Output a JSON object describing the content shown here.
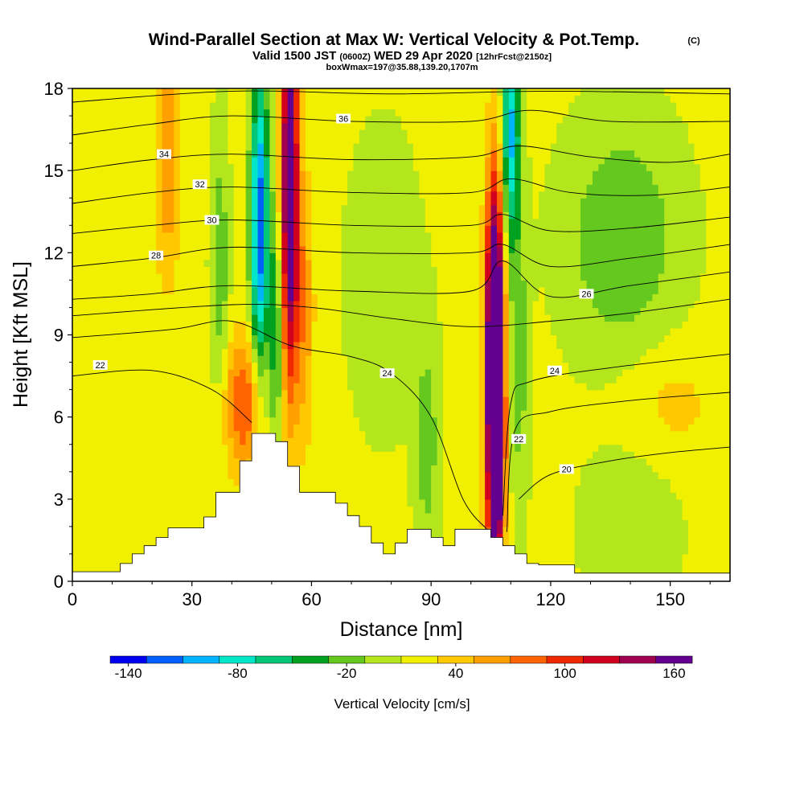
{
  "chart_data": {
    "type": "heatmap",
    "title": "Wind-Parallel Section at Max W: Vertical Velocity & Pot.Temp.",
    "title_mark": "(C)",
    "subtitle": {
      "valid_label": "Valid",
      "time": "1500 JST",
      "utc": "(0600Z)",
      "date": "WED 29 Apr 2020",
      "forecast": "[12hrFcst@2150z]"
    },
    "box_note": "boxWmax=197@35.88,139.20,1707m",
    "xlabel": "Distance [nm]",
    "ylabel": "Height [Kft MSL]",
    "xlim": [
      0,
      165
    ],
    "ylim": [
      0,
      18
    ],
    "x_ticks": [
      "0",
      "30",
      "60",
      "90",
      "120",
      "150"
    ],
    "y_ticks": [
      "0",
      "3",
      "6",
      "9",
      "12",
      "15",
      "18"
    ],
    "colorbar": {
      "label": "Vertical Velocity [cm/s]",
      "tick_labels": [
        "-140",
        "-80",
        "-20",
        "40",
        "100",
        "160"
      ],
      "levels": [
        -150,
        -130,
        -110,
        -90,
        -70,
        -50,
        -30,
        -10,
        10,
        30,
        50,
        70,
        90,
        110,
        130,
        150,
        170
      ],
      "colors": [
        "#0000f0",
        "#0060ff",
        "#00b4ff",
        "#00e6c8",
        "#00c878",
        "#00a020",
        "#64c81e",
        "#b4e61e",
        "#f0f000",
        "#ffc800",
        "#ffa000",
        "#ff6400",
        "#f02800",
        "#d2001e",
        "#a00050",
        "#640090"
      ]
    },
    "background_w": 15,
    "w_features": [
      {
        "x": 24,
        "y": 15.5,
        "sx": 2.2,
        "sy": 3.0,
        "w": 55
      },
      {
        "x": 37,
        "y": 11.5,
        "sx": 1.6,
        "sy": 3.5,
        "w": -40
      },
      {
        "x": 43,
        "y": 6.5,
        "sx": 3.5,
        "sy": 1.8,
        "w": 75
      },
      {
        "x": 47,
        "y": 13.0,
        "sx": 1.6,
        "sy": 4.0,
        "w": -140
      },
      {
        "x": 51,
        "y": 9.0,
        "sx": 1.2,
        "sy": 3.0,
        "w": -60
      },
      {
        "x": 54.5,
        "y": 14.5,
        "sx": 1.5,
        "sy": 5.0,
        "w": 180
      },
      {
        "x": 58,
        "y": 10.0,
        "sx": 1.8,
        "sy": 3.5,
        "w": 50
      },
      {
        "x": 89,
        "y": 5.0,
        "sx": 2.2,
        "sy": 3.0,
        "w": -35
      },
      {
        "x": 106,
        "y": 8.0,
        "sx": 1.6,
        "sy": 4.5,
        "w": 260
      },
      {
        "x": 106.5,
        "y": 3.5,
        "sx": 1.3,
        "sy": 2.0,
        "w": 80
      },
      {
        "x": 110,
        "y": 16.5,
        "sx": 1.6,
        "sy": 3.0,
        "w": -110
      },
      {
        "x": 112,
        "y": 8.0,
        "sx": 1.8,
        "sy": 4.0,
        "w": -35
      },
      {
        "x": 138,
        "y": 12.5,
        "sx": 10.0,
        "sy": 3.0,
        "w": -45
      },
      {
        "x": 150,
        "y": 6.5,
        "sx": 9.0,
        "sy": 1.6,
        "w": 22
      },
      {
        "x": 10,
        "y": 8.0,
        "sx": 7.0,
        "sy": 4.0,
        "w": 15
      },
      {
        "x": 78,
        "y": 11.0,
        "sx": 6.0,
        "sy": 3.5,
        "w": -25
      },
      {
        "x": 140,
        "y": 2.0,
        "sx": 8.0,
        "sy": 2.0,
        "w": -25
      }
    ],
    "terrain": [
      [
        0,
        0.35
      ],
      [
        12,
        0.35
      ],
      [
        12,
        0.65
      ],
      [
        15,
        0.65
      ],
      [
        15,
        1.0
      ],
      [
        18,
        1.0
      ],
      [
        18,
        1.3
      ],
      [
        21,
        1.3
      ],
      [
        21,
        1.6
      ],
      [
        24,
        1.6
      ],
      [
        24,
        1.95
      ],
      [
        27,
        1.95
      ],
      [
        27,
        1.95
      ],
      [
        30,
        1.95
      ],
      [
        30,
        1.95
      ],
      [
        33,
        1.95
      ],
      [
        33,
        2.35
      ],
      [
        36,
        2.35
      ],
      [
        36,
        3.25
      ],
      [
        42,
        3.25
      ],
      [
        42,
        4.4
      ],
      [
        45,
        4.4
      ],
      [
        45,
        5.4
      ],
      [
        51,
        5.4
      ],
      [
        51,
        5.1
      ],
      [
        54,
        5.1
      ],
      [
        54,
        4.2
      ],
      [
        57,
        4.2
      ],
      [
        57,
        3.25
      ],
      [
        66,
        3.25
      ],
      [
        66,
        2.85
      ],
      [
        69,
        2.85
      ],
      [
        69,
        2.4
      ],
      [
        72,
        2.4
      ],
      [
        72,
        2.0
      ],
      [
        75,
        2.0
      ],
      [
        75,
        1.4
      ],
      [
        78,
        1.4
      ],
      [
        78,
        1.0
      ],
      [
        81,
        1.0
      ],
      [
        81,
        1.4
      ],
      [
        84,
        1.4
      ],
      [
        84,
        1.9
      ],
      [
        87,
        1.9
      ],
      [
        87,
        1.9
      ],
      [
        90,
        1.9
      ],
      [
        90,
        1.6
      ],
      [
        93,
        1.6
      ],
      [
        93,
        1.3
      ],
      [
        96,
        1.3
      ],
      [
        96,
        1.9
      ],
      [
        105,
        1.9
      ],
      [
        105,
        1.6
      ],
      [
        108,
        1.6
      ],
      [
        108,
        1.3
      ],
      [
        111,
        1.3
      ],
      [
        111,
        1.0
      ],
      [
        114,
        1.0
      ],
      [
        114,
        0.65
      ],
      [
        117,
        0.65
      ],
      [
        117,
        0.6
      ],
      [
        126,
        0.6
      ],
      [
        126,
        0.3
      ],
      [
        165,
        0.3
      ]
    ],
    "theta_contours": [
      {
        "level": "20",
        "pts": [
          [
            112,
            3.0
          ],
          [
            120,
            3.9
          ],
          [
            135,
            4.4
          ],
          [
            150,
            4.7
          ],
          [
            165,
            4.9
          ]
        ],
        "label_at": [
          124,
          4.1
        ]
      },
      {
        "level": "22",
        "pts": [
          [
            0,
            7.5
          ],
          [
            20,
            7.7
          ],
          [
            35,
            7.0
          ],
          [
            45,
            5.8
          ]
        ],
        "label_at": [
          7,
          7.9
        ]
      },
      {
        "level": "22",
        "pts": [
          [
            109,
            1.8
          ],
          [
            111,
            5.5
          ],
          [
            120,
            6.2
          ],
          [
            140,
            6.6
          ],
          [
            165,
            6.9
          ]
        ],
        "label_at": [
          112,
          5.2
        ]
      },
      {
        "level": "24",
        "pts": [
          [
            0,
            8.9
          ],
          [
            25,
            9.2
          ],
          [
            40,
            9.5
          ],
          [
            55,
            8.6
          ],
          [
            70,
            8.2
          ],
          [
            80,
            7.6
          ],
          [
            90,
            6.0
          ],
          [
            98,
            3.0
          ],
          [
            104,
            1.9
          ]
        ],
        "label_at": [
          79,
          7.6
        ]
      },
      {
        "level": "24",
        "pts": [
          [
            108,
            2.4
          ],
          [
            110,
            6.5
          ],
          [
            115,
            7.3
          ],
          [
            135,
            7.8
          ],
          [
            165,
            8.3
          ]
        ],
        "label_at": [
          121,
          7.7
        ]
      },
      {
        "level": "",
        "pts": [
          [
            0,
            9.7
          ],
          [
            40,
            10.1
          ],
          [
            60,
            10.0
          ],
          [
            80,
            9.6
          ],
          [
            100,
            9.3
          ],
          [
            120,
            9.5
          ],
          [
            140,
            9.8
          ],
          [
            165,
            10.3
          ]
        ],
        "label_at": null
      },
      {
        "level": "26",
        "pts": [
          [
            0,
            10.3
          ],
          [
            20,
            10.5
          ],
          [
            40,
            10.8
          ],
          [
            70,
            10.6
          ],
          [
            100,
            10.6
          ],
          [
            108,
            11.7
          ],
          [
            120,
            10.4
          ],
          [
            140,
            10.8
          ],
          [
            165,
            11.3
          ]
        ],
        "label_at": [
          129,
          10.5
        ]
      },
      {
        "level": "28",
        "pts": [
          [
            0,
            11.5
          ],
          [
            20,
            11.8
          ],
          [
            40,
            12.2
          ],
          [
            70,
            12.0
          ],
          [
            100,
            12.0
          ],
          [
            108,
            12.3
          ],
          [
            120,
            11.5
          ],
          [
            140,
            11.8
          ],
          [
            165,
            12.3
          ]
        ],
        "label_at": [
          21,
          11.9
        ]
      },
      {
        "level": "30",
        "pts": [
          [
            0,
            12.7
          ],
          [
            20,
            13.0
          ],
          [
            40,
            13.2
          ],
          [
            70,
            13.0
          ],
          [
            100,
            13.0
          ],
          [
            108,
            13.4
          ],
          [
            120,
            12.8
          ],
          [
            140,
            12.9
          ],
          [
            165,
            13.3
          ]
        ],
        "label_at": [
          35,
          13.2
        ]
      },
      {
        "level": "32",
        "pts": [
          [
            0,
            13.8
          ],
          [
            20,
            14.2
          ],
          [
            40,
            14.4
          ],
          [
            70,
            14.2
          ],
          [
            100,
            14.2
          ],
          [
            110,
            14.7
          ],
          [
            125,
            14.2
          ],
          [
            145,
            14.1
          ],
          [
            165,
            14.4
          ]
        ],
        "label_at": [
          32,
          14.5
        ]
      },
      {
        "level": "34",
        "pts": [
          [
            0,
            15.0
          ],
          [
            20,
            15.4
          ],
          [
            40,
            15.6
          ],
          [
            70,
            15.4
          ],
          [
            100,
            15.5
          ],
          [
            112,
            15.9
          ],
          [
            130,
            15.5
          ],
          [
            150,
            15.3
          ],
          [
            165,
            15.6
          ]
        ],
        "label_at": [
          23,
          15.6
        ]
      },
      {
        "level": "36",
        "pts": [
          [
            0,
            16.3
          ],
          [
            20,
            16.7
          ],
          [
            40,
            17.0
          ],
          [
            70,
            16.8
          ],
          [
            100,
            16.8
          ],
          [
            115,
            17.2
          ],
          [
            135,
            16.8
          ],
          [
            165,
            16.8
          ]
        ],
        "label_at": [
          68,
          16.9
        ]
      },
      {
        "level": "",
        "pts": [
          [
            0,
            17.5
          ],
          [
            40,
            17.9
          ],
          [
            80,
            17.8
          ],
          [
            120,
            17.9
          ],
          [
            165,
            17.8
          ]
        ],
        "label_at": null
      }
    ]
  }
}
